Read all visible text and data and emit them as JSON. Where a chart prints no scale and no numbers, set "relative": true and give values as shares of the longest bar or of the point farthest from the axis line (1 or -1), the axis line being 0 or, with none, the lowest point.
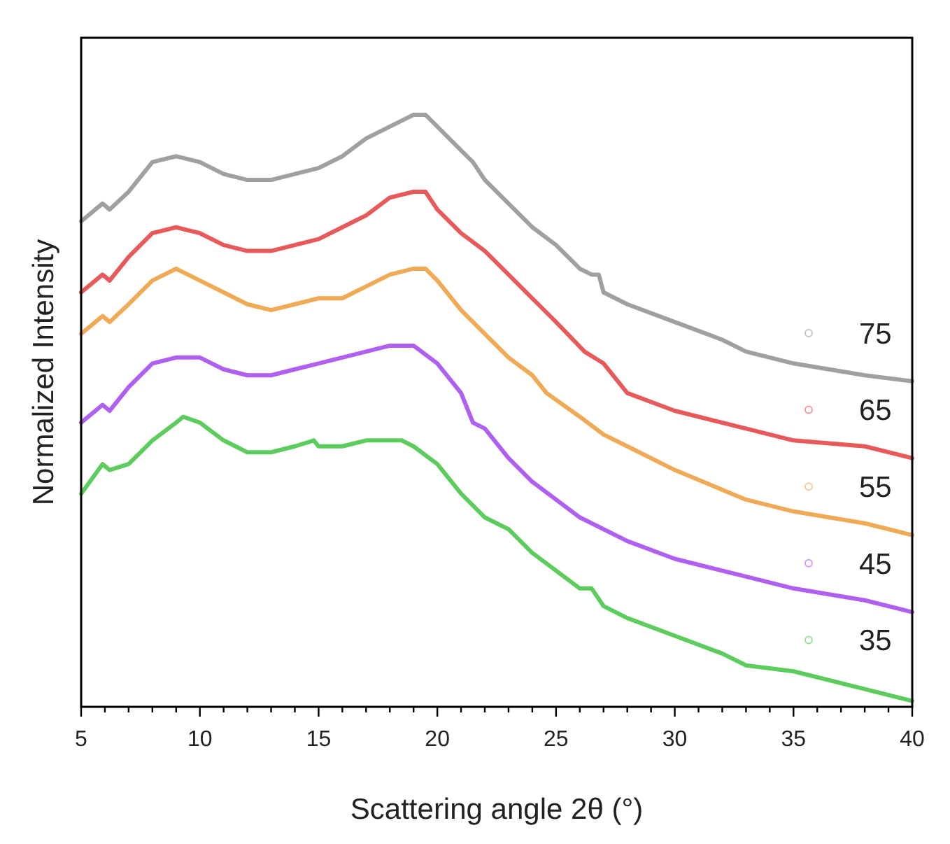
{
  "chart_data": {
    "type": "line",
    "relative": true,
    "xlabel": "Scattering angle 2θ (°)",
    "ylabel": "Normalized Intensity",
    "xlim": [
      5,
      40
    ],
    "xticks": [
      5,
      {
        "value": 6,
        "label": null
      },
      {
        "value": 7,
        "label": null
      },
      {
        "value": 8,
        "label": null
      },
      {
        "value": 9,
        "label": null
      },
      10,
      {
        "value": 11,
        "label": null
      },
      {
        "value": 12,
        "label": null
      },
      {
        "value": 13,
        "label": null
      },
      {
        "value": 14,
        "label": null
      },
      15,
      {
        "value": 16,
        "label": null
      },
      {
        "value": 17,
        "label": null
      },
      {
        "value": 18,
        "label": null
      },
      {
        "value": 19,
        "label": null
      },
      20,
      {
        "value": 21,
        "label": null
      },
      {
        "value": 22,
        "label": null
      },
      {
        "value": 23,
        "label": null
      },
      {
        "value": 24,
        "label": null
      },
      25,
      {
        "value": 26,
        "label": null
      },
      {
        "value": 27,
        "label": null
      },
      {
        "value": 28,
        "label": null
      },
      {
        "value": 29,
        "label": null
      },
      30,
      {
        "value": 31,
        "label": null
      },
      {
        "value": 32,
        "label": null
      },
      {
        "value": 33,
        "label": null
      },
      {
        "value": 34,
        "label": null
      },
      35,
      {
        "value": 36,
        "label": null
      },
      {
        "value": 37,
        "label": null
      },
      {
        "value": 38,
        "label": null
      },
      {
        "value": 39,
        "label": null
      },
      40
    ],
    "legend": "right",
    "series": [
      {
        "name": "75",
        "color": "#a0a0a0",
        "x": [
          5,
          5.9,
          6.2,
          7,
          8,
          9,
          10,
          11,
          12,
          13,
          14,
          15,
          16,
          17,
          18,
          19,
          19.5,
          20,
          21,
          21.5,
          22,
          23,
          24,
          25,
          26,
          26.5,
          26.8,
          27,
          28,
          30,
          32,
          33,
          35,
          38,
          40
        ],
        "values": [
          0.82,
          0.85,
          0.84,
          0.87,
          0.92,
          0.93,
          0.92,
          0.9,
          0.89,
          0.89,
          0.9,
          0.91,
          0.93,
          0.96,
          0.98,
          1.0,
          1.0,
          0.98,
          0.94,
          0.92,
          0.89,
          0.85,
          0.81,
          0.78,
          0.74,
          0.73,
          0.73,
          0.7,
          0.68,
          0.65,
          0.62,
          0.6,
          0.58,
          0.56,
          0.55
        ]
      },
      {
        "name": "65",
        "color": "#e85a5a",
        "x": [
          5,
          5.9,
          6.2,
          7,
          8,
          9,
          10,
          11,
          12,
          13,
          14,
          15,
          16,
          17,
          18,
          19,
          19.5,
          20,
          21,
          22,
          23,
          24,
          25,
          26.2,
          27,
          28,
          30,
          33,
          35,
          38,
          40
        ],
        "values": [
          0.7,
          0.73,
          0.72,
          0.76,
          0.8,
          0.81,
          0.8,
          0.78,
          0.77,
          0.77,
          0.78,
          0.79,
          0.81,
          0.83,
          0.86,
          0.87,
          0.87,
          0.84,
          0.8,
          0.77,
          0.73,
          0.69,
          0.65,
          0.6,
          0.58,
          0.53,
          0.5,
          0.47,
          0.45,
          0.44,
          0.42
        ]
      },
      {
        "name": "55",
        "color": "#f0aa55",
        "x": [
          5,
          5.9,
          6.2,
          7,
          8,
          9,
          10,
          11,
          12,
          13,
          14,
          15,
          16,
          17,
          18,
          19,
          19.5,
          20,
          21,
          22,
          23,
          24,
          24.6,
          26,
          27,
          28,
          30,
          33,
          35,
          38,
          40
        ],
        "values": [
          0.63,
          0.66,
          0.65,
          0.68,
          0.72,
          0.74,
          0.72,
          0.7,
          0.68,
          0.67,
          0.68,
          0.69,
          0.69,
          0.71,
          0.73,
          0.74,
          0.74,
          0.72,
          0.67,
          0.63,
          0.59,
          0.56,
          0.53,
          0.49,
          0.46,
          0.44,
          0.4,
          0.35,
          0.33,
          0.31,
          0.29
        ]
      },
      {
        "name": "45",
        "color": "#b060f0",
        "x": [
          5,
          5.9,
          6.2,
          7,
          8,
          9,
          10,
          11,
          12,
          13,
          14,
          15,
          16,
          17,
          18,
          18.5,
          19,
          20,
          21,
          21.5,
          22,
          23,
          24,
          25,
          26,
          28,
          30,
          33,
          35,
          38,
          40
        ],
        "values": [
          0.48,
          0.51,
          0.5,
          0.54,
          0.58,
          0.59,
          0.59,
          0.57,
          0.56,
          0.56,
          0.57,
          0.58,
          0.59,
          0.6,
          0.61,
          0.61,
          0.61,
          0.58,
          0.53,
          0.48,
          0.47,
          0.42,
          0.38,
          0.35,
          0.32,
          0.28,
          0.25,
          0.22,
          0.2,
          0.18,
          0.16
        ]
      },
      {
        "name": "35",
        "color": "#5ccc5c",
        "x": [
          5,
          5.9,
          6.2,
          7,
          8,
          9,
          9.3,
          10,
          11,
          12,
          13,
          14,
          14.8,
          15,
          16,
          17,
          18,
          18.5,
          19,
          20,
          21,
          22,
          23,
          24,
          25,
          26,
          26.5,
          27,
          28,
          30,
          32,
          33,
          35,
          38,
          40
        ],
        "values": [
          0.36,
          0.41,
          0.4,
          0.41,
          0.45,
          0.48,
          0.49,
          0.48,
          0.45,
          0.43,
          0.43,
          0.44,
          0.45,
          0.44,
          0.44,
          0.45,
          0.45,
          0.45,
          0.44,
          0.41,
          0.36,
          0.32,
          0.3,
          0.26,
          0.23,
          0.2,
          0.2,
          0.17,
          0.15,
          0.12,
          0.09,
          0.07,
          0.06,
          0.03,
          0.01
        ]
      }
    ]
  }
}
